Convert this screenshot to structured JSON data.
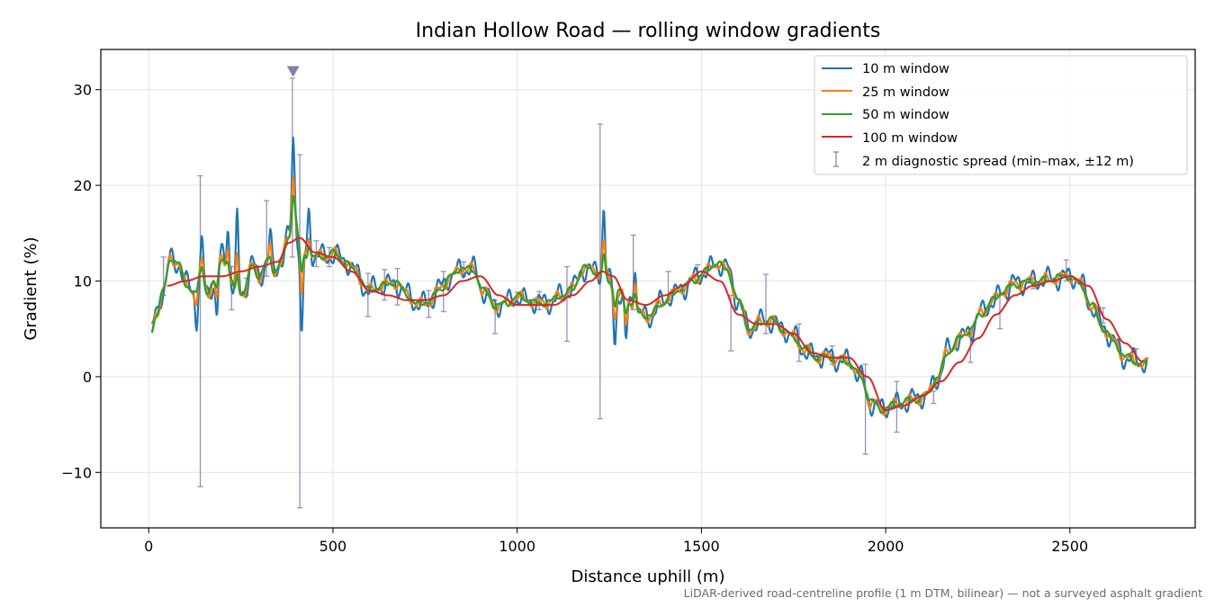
{
  "chart_data": {
    "type": "line",
    "title": "Indian Hollow Road — rolling window gradients",
    "xlabel": "Distance uphill (m)",
    "ylabel": "Gradient (%)",
    "xlim": [
      -130,
      2840
    ],
    "ylim": [
      -15.8,
      34.2
    ],
    "xticks": [
      0,
      500,
      1000,
      1500,
      2000,
      2500
    ],
    "yticks": [
      -10,
      0,
      10,
      20,
      30
    ],
    "grid": true,
    "legend_position": "top-right",
    "series": [
      {
        "name": "10 m window",
        "color": "#1f77b4",
        "noise": 1.6,
        "smooth": 0
      },
      {
        "name": "25 m window",
        "color": "#ff7f0e",
        "noise": 0.9,
        "smooth": 0
      },
      {
        "name": "50 m window",
        "color": "#2ca02c",
        "noise": 0.45,
        "smooth": 0
      },
      {
        "name": "100 m window",
        "color": "#d62728",
        "noise": 0,
        "smooth": 1
      }
    ],
    "base_profile": {
      "x": [
        8,
        20,
        40,
        60,
        80,
        100,
        120,
        140,
        160,
        180,
        200,
        220,
        240,
        260,
        280,
        300,
        320,
        340,
        360,
        380,
        395,
        410,
        430,
        450,
        470,
        500,
        530,
        560,
        600,
        640,
        670,
        700,
        730,
        760,
        790,
        820,
        850,
        880,
        910,
        940,
        970,
        1000,
        1030,
        1060,
        1090,
        1120,
        1150,
        1180,
        1210,
        1230,
        1250,
        1270,
        1300,
        1330,
        1360,
        1390,
        1420,
        1450,
        1480,
        1510,
        1540,
        1570,
        1600,
        1630,
        1660,
        1690,
        1720,
        1750,
        1780,
        1810,
        1840,
        1870,
        1900,
        1930,
        1960,
        1990,
        2020,
        2050,
        2080,
        2110,
        2140,
        2170,
        2200,
        2230,
        2260,
        2290,
        2320,
        2350,
        2380,
        2410,
        2440,
        2470,
        2500,
        2530,
        2560,
        2590,
        2620,
        2650,
        2680,
        2710
      ],
      "y": [
        4.5,
        6.5,
        9,
        12.5,
        12,
        9.5,
        9,
        10.5,
        9,
        10,
        12.5,
        10,
        8.5,
        9,
        11.5,
        10.5,
        12,
        11,
        12,
        14.5,
        17,
        14,
        12.5,
        12.5,
        12.5,
        13,
        12,
        11,
        9,
        9.5,
        10,
        8.5,
        7.5,
        8,
        9,
        10.5,
        11.5,
        11,
        9,
        7.5,
        7.5,
        8.5,
        8,
        7.5,
        8,
        8.5,
        9,
        11.5,
        11,
        10.5,
        10,
        9,
        8,
        6.5,
        6.5,
        7.5,
        8.5,
        9.5,
        10,
        11,
        12,
        11,
        8,
        5,
        5.5,
        6,
        5,
        4,
        3,
        2,
        2,
        2,
        1.5,
        0,
        -2.5,
        -3.5,
        -3,
        -2.5,
        -2.5,
        -2,
        0,
        2.5,
        4,
        5,
        6.5,
        8,
        9,
        9.5,
        10,
        10,
        10,
        10.5,
        10.5,
        9.5,
        7.5,
        5,
        3.5,
        2.2,
        1.5,
        1.2
      ]
    },
    "smooth_profile": {
      "x": [
        50,
        100,
        150,
        200,
        250,
        300,
        350,
        380,
        410,
        450,
        500,
        550,
        600,
        650,
        700,
        750,
        800,
        850,
        900,
        950,
        1000,
        1050,
        1100,
        1150,
        1200,
        1230,
        1260,
        1300,
        1350,
        1400,
        1450,
        1500,
        1550,
        1600,
        1650,
        1700,
        1750,
        1800,
        1850,
        1900,
        1950,
        2000,
        2050,
        2100,
        2150,
        2200,
        2250,
        2300,
        2350,
        2400,
        2450,
        2500,
        2550,
        2600,
        2650,
        2700
      ],
      "y": [
        9.5,
        10,
        10.5,
        10.5,
        11,
        11.5,
        12,
        14,
        14.5,
        13,
        12.5,
        11,
        9,
        8.5,
        8,
        8,
        8.5,
        10,
        10.5,
        8.5,
        7.5,
        7.5,
        7.5,
        8.5,
        10,
        11,
        10.5,
        8,
        7.5,
        8.5,
        9.5,
        11,
        10,
        6.5,
        5.5,
        5.5,
        4.5,
        2.5,
        2,
        2,
        0,
        -3.5,
        -3,
        -2,
        -0.5,
        1.5,
        4,
        6.5,
        8.5,
        9.5,
        10,
        10.5,
        9.5,
        6,
        3.5,
        1.5
      ]
    },
    "spikes": [
      {
        "x": 130,
        "y": 6
      },
      {
        "x": 145,
        "y": 14
      },
      {
        "x": 185,
        "y": 6
      },
      {
        "x": 215,
        "y": 16
      },
      {
        "x": 240,
        "y": 16.5
      },
      {
        "x": 330,
        "y": 15
      },
      {
        "x": 392,
        "y": 25
      },
      {
        "x": 415,
        "y": 4
      },
      {
        "x": 435,
        "y": 17
      },
      {
        "x": 1235,
        "y": 17.5
      },
      {
        "x": 1265,
        "y": 4
      },
      {
        "x": 1295,
        "y": 3
      },
      {
        "x": 1320,
        "y": 12
      }
    ],
    "diagnostic_spread": {
      "name": "2 m diagnostic spread (min–max, ±12 m)",
      "color": "#9890b8",
      "x": [
        40,
        140,
        225,
        265,
        320,
        390,
        410,
        455,
        490,
        595,
        640,
        675,
        760,
        800,
        855,
        940,
        1000,
        1060,
        1135,
        1225,
        1315,
        1410,
        1490,
        1580,
        1675,
        1765,
        1855,
        1945,
        2030,
        2130,
        2230,
        2310,
        2400,
        2490,
        2590,
        2680
      ],
      "lo": [
        8.5,
        -11.5,
        7,
        8.5,
        10.5,
        12.5,
        -13.7,
        11.5,
        11.5,
        6.3,
        8,
        7.5,
        6.2,
        6.8,
        10.5,
        4.5,
        7.5,
        7,
        3.7,
        -4.4,
        7,
        8,
        10.5,
        2.7,
        4.5,
        1.6,
        1.3,
        -8.1,
        -5.8,
        -2.8,
        1.5,
        5,
        9.2,
        10,
        5.6,
        1.3
      ],
      "hi": [
        12.5,
        21,
        11.5,
        10.3,
        18.4,
        31.2,
        23.2,
        14.2,
        13.5,
        10.8,
        11.2,
        11.3,
        9,
        11,
        12,
        8,
        8.8,
        8.9,
        11.5,
        26.4,
        14.8,
        11,
        11.7,
        8.5,
        10.7,
        5.5,
        3.2,
        1.3,
        -0.5,
        -1.5,
        4.2,
        8.7,
        10.3,
        12.2,
        7.2,
        2.9
      ]
    },
    "clipped_marker": {
      "x": 392,
      "y": 31.9,
      "color": "#8a7ab0"
    },
    "footnote": "LiDAR-derived road-centreline profile (1 m DTM, bilinear) — not a surveyed asphalt gradient"
  }
}
